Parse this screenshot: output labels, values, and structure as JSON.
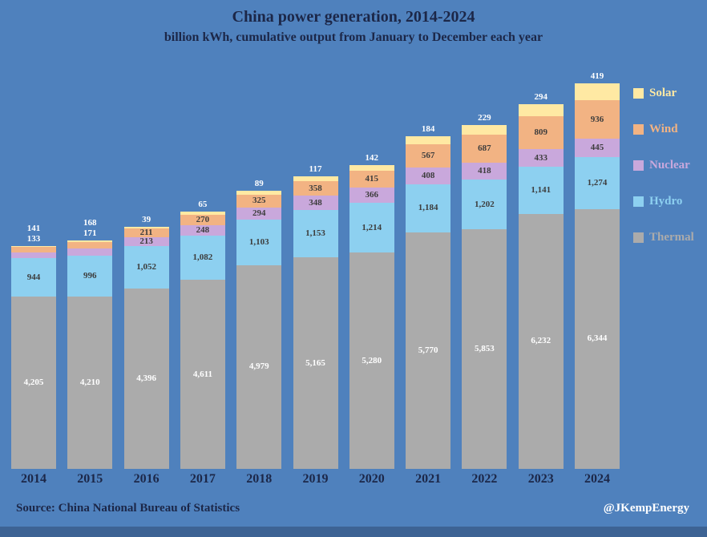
{
  "title": "China power generation, 2014-2024",
  "subtitle": "billion kWh, cumulative output from January to December each year",
  "source": "Source: China National Bureau of Statistics",
  "credit": "@JKempEnergy",
  "colors": {
    "background": "#4f81bd",
    "bottom_strip": "#3d6394",
    "title_text": "#1c2748",
    "inside_label_text": "#3d3d3d",
    "white_label_text": "#ffffff"
  },
  "chart_data": {
    "type": "bar",
    "stacked": true,
    "title": "China power generation, 2014-2024",
    "subtitle": "billion kWh, cumulative output from January to December each year",
    "xlabel": "",
    "ylabel": "billion kWh",
    "grid": false,
    "legend_position": "right",
    "categories": [
      "2014",
      "2015",
      "2016",
      "2017",
      "2018",
      "2019",
      "2020",
      "2021",
      "2022",
      "2023",
      "2024"
    ],
    "series": [
      {
        "name": "Thermal",
        "color": "#ababab",
        "values": [
          4205,
          4210,
          4396,
          4611,
          4979,
          5165,
          5280,
          5770,
          5853,
          6232,
          6344
        ]
      },
      {
        "name": "Hydro",
        "color": "#8dd0f0",
        "values": [
          944,
          996,
          1052,
          1082,
          1103,
          1153,
          1214,
          1184,
          1202,
          1141,
          1274
        ]
      },
      {
        "name": "Nuclear",
        "color": "#c9a8dc",
        "values": [
          133,
          171,
          213,
          248,
          294,
          348,
          366,
          408,
          418,
          433,
          445
        ]
      },
      {
        "name": "Wind",
        "color": "#f2b383",
        "values": [
          141,
          168,
          211,
          270,
          325,
          358,
          415,
          567,
          687,
          809,
          936
        ]
      },
      {
        "name": "Solar",
        "color": "#ffe9a3",
        "values": [
          null,
          null,
          39,
          65,
          89,
          117,
          142,
          184,
          229,
          294,
          419
        ]
      }
    ],
    "legend": [
      "Solar",
      "Wind",
      "Nuclear",
      "Hydro",
      "Thermal"
    ]
  }
}
